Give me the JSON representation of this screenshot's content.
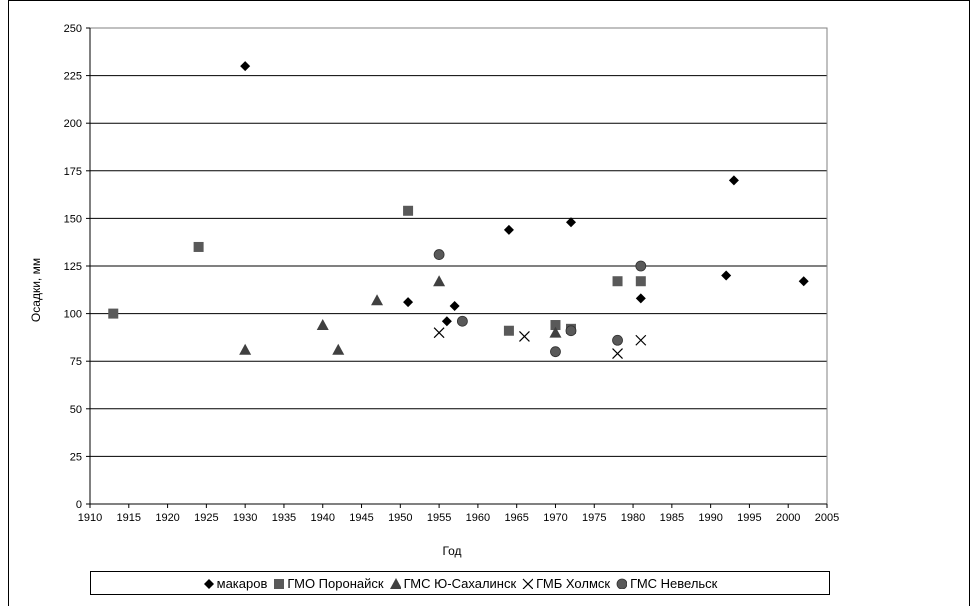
{
  "chart_data": {
    "type": "scatter",
    "title": "",
    "xlabel": "Год",
    "ylabel": "Осадки, мм",
    "xlim": [
      1910,
      2005
    ],
    "ylim": [
      0,
      250
    ],
    "x_ticks": [
      1910,
      1915,
      1920,
      1925,
      1930,
      1935,
      1940,
      1945,
      1950,
      1955,
      1960,
      1965,
      1970,
      1975,
      1980,
      1985,
      1990,
      1995,
      2000,
      2005
    ],
    "y_ticks": [
      0,
      25,
      50,
      75,
      100,
      125,
      150,
      175,
      200,
      225,
      250
    ],
    "grid": "horizontal",
    "legend_position": "bottom",
    "series": [
      {
        "name": "макаров",
        "marker": "diamond",
        "color": "#000000",
        "points": [
          [
            1930,
            230
          ],
          [
            1951,
            106
          ],
          [
            1956,
            96
          ],
          [
            1957,
            104
          ],
          [
            1964,
            144
          ],
          [
            1972,
            148
          ],
          [
            1981,
            108
          ],
          [
            1992,
            120
          ],
          [
            1993,
            170
          ],
          [
            2002,
            117
          ]
        ]
      },
      {
        "name": "ГМО Поронайск",
        "marker": "square",
        "color": "#595959",
        "points": [
          [
            1913,
            100
          ],
          [
            1924,
            135
          ],
          [
            1951,
            154
          ],
          [
            1964,
            91
          ],
          [
            1970,
            94
          ],
          [
            1972,
            92
          ],
          [
            1978,
            117
          ],
          [
            1981,
            117
          ]
        ]
      },
      {
        "name": "ГМС Ю-Сахалинск",
        "marker": "triangle",
        "color": "#404040",
        "points": [
          [
            1930,
            81
          ],
          [
            1940,
            94
          ],
          [
            1942,
            81
          ],
          [
            1947,
            107
          ],
          [
            1955,
            117
          ],
          [
            1970,
            90
          ]
        ]
      },
      {
        "name": "ГМБ Холмск",
        "marker": "cross",
        "color": "#000000",
        "points": [
          [
            1955,
            90
          ],
          [
            1966,
            88
          ],
          [
            1978,
            79
          ],
          [
            1981,
            86
          ]
        ]
      },
      {
        "name": "ГМС Невельск",
        "marker": "circle",
        "color": "#595959",
        "points": [
          [
            1955,
            131
          ],
          [
            1958,
            96
          ],
          [
            1970,
            80
          ],
          [
            1972,
            91
          ],
          [
            1978,
            86
          ],
          [
            1981,
            125
          ]
        ]
      }
    ]
  }
}
